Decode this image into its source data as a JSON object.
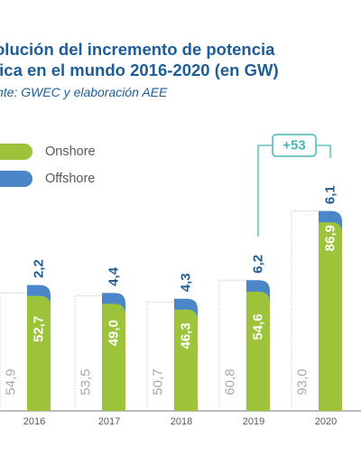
{
  "title": {
    "line1": "olución del incremento de potencia",
    "line2": "lica en el mundo 2016-2020 (en GW)"
  },
  "source": "nte: GWEC y elaboración AEE",
  "colors": {
    "onshore": "#9dc33b",
    "offshore": "#4a86c8",
    "previous": "#c8c8c8",
    "text_blue": "#1e5d96",
    "bracket": "#45b7b5"
  },
  "legend": [
    {
      "label": "Onshore",
      "color": "#9dc33b"
    },
    {
      "label": "Offshore",
      "color": "#4a86c8"
    }
  ],
  "annotation": {
    "label": "+53"
  },
  "chart_data": {
    "type": "bar",
    "categories": [
      "2016",
      "2017",
      "2018",
      "2019",
      "2020"
    ],
    "previous_values": [
      54.9,
      53.5,
      50.7,
      60.8,
      93.0
    ],
    "previous_labels": [
      "54,9",
      "53,5",
      "50,7",
      "60,8",
      "93,0"
    ],
    "series": [
      {
        "name": "Onshore",
        "values": [
          52.7,
          49.0,
          46.3,
          54.6,
          86.9
        ],
        "labels": [
          "52,7",
          "49,0",
          "46,3",
          "54,6",
          "86,9"
        ]
      },
      {
        "name": "Offshore",
        "values": [
          2.2,
          4.4,
          4.3,
          6.2,
          6.1
        ],
        "labels": [
          "2,2",
          "4,4",
          "4,3",
          "6,2",
          "6,1"
        ]
      }
    ],
    "annotations": [
      {
        "from": "2019",
        "to": "2020",
        "text": "+53"
      }
    ]
  }
}
